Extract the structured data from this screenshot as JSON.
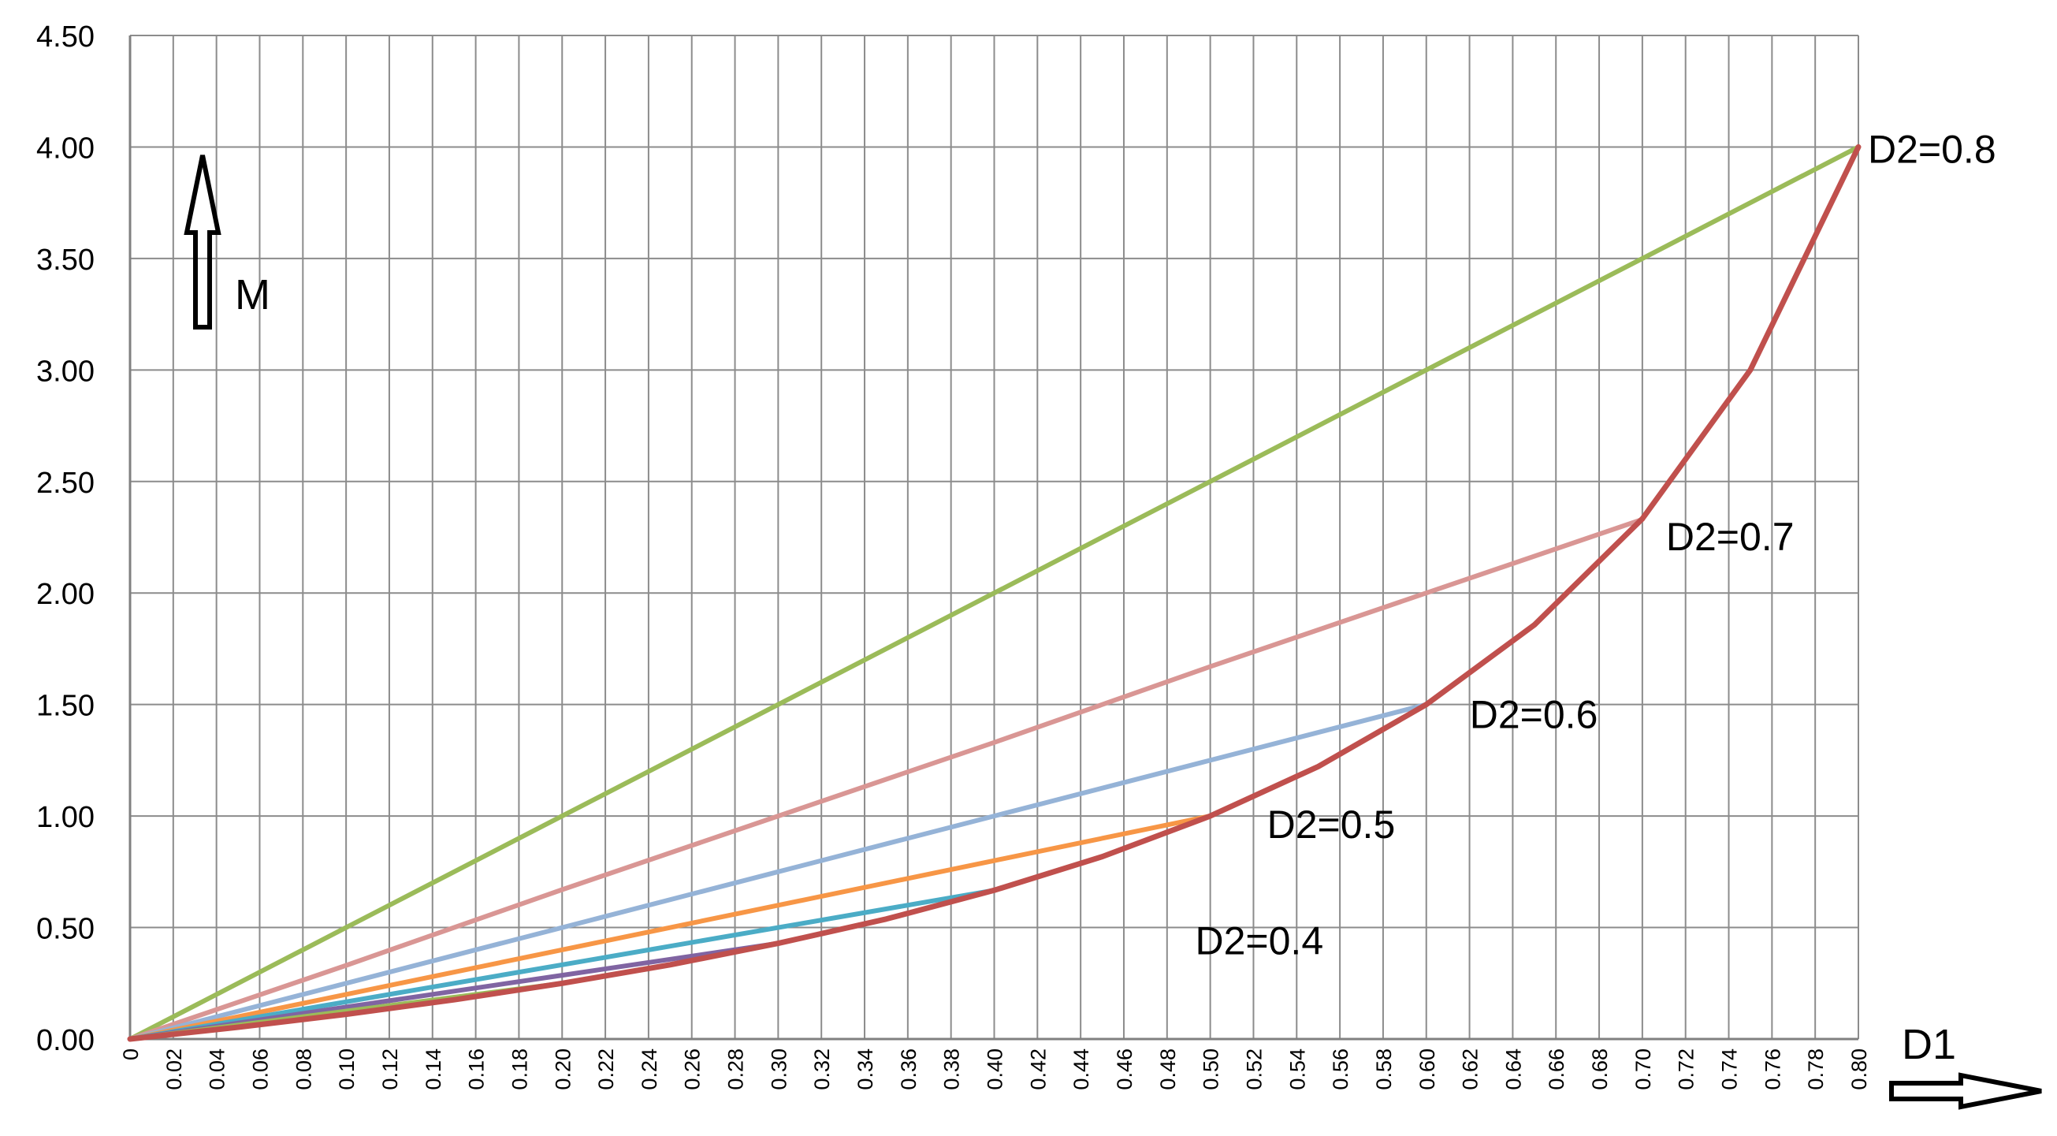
{
  "chart_data": {
    "type": "line",
    "xlabel": "D1",
    "ylabel": "M",
    "xlim": [
      0,
      0.8
    ],
    "ylim": [
      0,
      4.5
    ],
    "x_ticks": [
      "0",
      "0.02",
      "0.04",
      "0.06",
      "0.08",
      "0.10",
      "0.12",
      "0.14",
      "0.16",
      "0.18",
      "0.20",
      "0.22",
      "0.24",
      "0.26",
      "0.28",
      "0.30",
      "0.32",
      "0.34",
      "0.36",
      "0.38",
      "0.40",
      "0.42",
      "0.44",
      "0.46",
      "0.48",
      "0.50",
      "0.52",
      "0.54",
      "0.56",
      "0.58",
      "0.60",
      "0.62",
      "0.64",
      "0.66",
      "0.68",
      "0.70",
      "0.72",
      "0.74",
      "0.76",
      "0.78",
      "0.80"
    ],
    "y_ticks": [
      "0.00",
      "0.50",
      "1.00",
      "1.50",
      "2.00",
      "2.50",
      "3.00",
      "3.50",
      "4.00",
      "4.50"
    ],
    "grid": true,
    "legend": "none",
    "series": [
      {
        "name": "",
        "color": "#9BBB59",
        "x": [
          0,
          0.1,
          0.2,
          0.3,
          0.4,
          0.5,
          0.6,
          0.7,
          0.8
        ],
        "y": [
          0,
          0.5,
          1.0,
          1.5,
          2.0,
          2.5,
          3.0,
          3.5,
          4.0
        ]
      },
      {
        "name": "",
        "color": "#D99694",
        "x": [
          0,
          0.1,
          0.2,
          0.3,
          0.4,
          0.5,
          0.6,
          0.7
        ],
        "y": [
          0,
          0.33,
          0.67,
          1.0,
          1.33,
          1.67,
          2.0,
          2.33
        ]
      },
      {
        "name": "",
        "color": "#95B3D7",
        "x": [
          0,
          0.1,
          0.2,
          0.3,
          0.4,
          0.5,
          0.6
        ],
        "y": [
          0,
          0.25,
          0.5,
          0.75,
          1.0,
          1.25,
          1.5
        ]
      },
      {
        "name": "",
        "color": "#F79646",
        "x": [
          0,
          0.1,
          0.2,
          0.3,
          0.4,
          0.5
        ],
        "y": [
          0,
          0.2,
          0.4,
          0.6,
          0.8,
          1.0
        ]
      },
      {
        "name": "",
        "color": "#4BACC6",
        "x": [
          0,
          0.1,
          0.2,
          0.3,
          0.4
        ],
        "y": [
          0,
          0.167,
          0.333,
          0.5,
          0.667
        ]
      },
      {
        "name": "",
        "color": "#8064A2",
        "x": [
          0,
          0.1,
          0.2,
          0.3
        ],
        "y": [
          0,
          0.143,
          0.286,
          0.429
        ]
      },
      {
        "name": "",
        "color": "#9BBB59",
        "x": [
          0,
          0.1,
          0.2
        ],
        "y": [
          0,
          0.125,
          0.25
        ]
      },
      {
        "name": "",
        "color": "#C0504D",
        "x": [
          0,
          0.05,
          0.1,
          0.15,
          0.2,
          0.25,
          0.3,
          0.35,
          0.4,
          0.45,
          0.5,
          0.55,
          0.6,
          0.65,
          0.7,
          0.75,
          0.8
        ],
        "y": [
          0,
          0.053,
          0.111,
          0.176,
          0.25,
          0.333,
          0.429,
          0.538,
          0.667,
          0.818,
          1.0,
          1.222,
          1.5,
          1.857,
          2.333,
          3.0,
          4.0
        ]
      }
    ],
    "annotations": [
      {
        "text": "D2=0.8",
        "x": 0.8,
        "y": 4.0
      },
      {
        "text": "D2=0.7",
        "x": 0.7,
        "y": 2.333
      },
      {
        "text": "D2=0.6",
        "x": 0.6,
        "y": 1.5
      },
      {
        "text": "D2=0.5",
        "x": 0.5,
        "y": 1.0
      },
      {
        "text": "D2=0.4",
        "x": 0.4,
        "y": 0.667
      }
    ]
  }
}
